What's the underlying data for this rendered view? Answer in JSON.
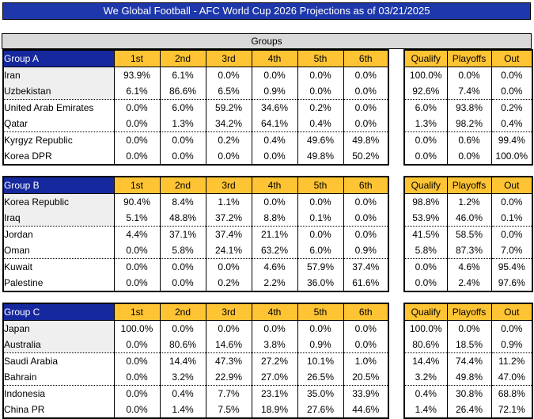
{
  "title": "We Global Football - AFC World Cup 2026 Projections as of 03/21/2025",
  "banner": "Groups",
  "position_headers": [
    "1st",
    "2nd",
    "3rd",
    "4th",
    "5th",
    "6th"
  ],
  "outcome_headers": [
    "Qualify",
    "Playoffs",
    "Out"
  ],
  "colors": {
    "title_bg": "#1E38AC",
    "group_header_bg": "#16289E",
    "column_header_bg": "#FFC433",
    "banner_bg": "#D9D9D9",
    "shaded_team_bg": "#EFEFEF"
  },
  "groups": [
    {
      "name": "Group A",
      "teams": [
        {
          "team": "Iran",
          "positions": [
            "93.9%",
            "6.1%",
            "0.0%",
            "0.0%",
            "0.0%",
            "0.0%"
          ],
          "outcomes": [
            "100.0%",
            "0.0%",
            "0.0%"
          ]
        },
        {
          "team": "Uzbekistan",
          "positions": [
            "6.1%",
            "86.6%",
            "6.5%",
            "0.9%",
            "0.0%",
            "0.0%"
          ],
          "outcomes": [
            "92.6%",
            "7.4%",
            "0.0%"
          ]
        },
        {
          "team": "United Arab Emirates",
          "positions": [
            "0.0%",
            "6.0%",
            "59.2%",
            "34.6%",
            "0.2%",
            "0.0%"
          ],
          "outcomes": [
            "6.0%",
            "93.8%",
            "0.2%"
          ]
        },
        {
          "team": "Qatar",
          "positions": [
            "0.0%",
            "1.3%",
            "34.2%",
            "64.1%",
            "0.4%",
            "0.0%"
          ],
          "outcomes": [
            "1.3%",
            "98.2%",
            "0.4%"
          ]
        },
        {
          "team": "Kyrgyz Republic",
          "positions": [
            "0.0%",
            "0.0%",
            "0.2%",
            "0.4%",
            "49.6%",
            "49.8%"
          ],
          "outcomes": [
            "0.0%",
            "0.6%",
            "99.4%"
          ]
        },
        {
          "team": "Korea DPR",
          "positions": [
            "0.0%",
            "0.0%",
            "0.0%",
            "0.0%",
            "49.8%",
            "50.2%"
          ],
          "outcomes": [
            "0.0%",
            "0.0%",
            "100.0%"
          ]
        }
      ]
    },
    {
      "name": "Group B",
      "teams": [
        {
          "team": "Korea Republic",
          "positions": [
            "90.4%",
            "8.4%",
            "1.1%",
            "0.0%",
            "0.0%",
            "0.0%"
          ],
          "outcomes": [
            "98.8%",
            "1.2%",
            "0.0%"
          ]
        },
        {
          "team": "Iraq",
          "positions": [
            "5.1%",
            "48.8%",
            "37.2%",
            "8.8%",
            "0.1%",
            "0.0%"
          ],
          "outcomes": [
            "53.9%",
            "46.0%",
            "0.1%"
          ]
        },
        {
          "team": "Jordan",
          "positions": [
            "4.4%",
            "37.1%",
            "37.4%",
            "21.1%",
            "0.0%",
            "0.0%"
          ],
          "outcomes": [
            "41.5%",
            "58.5%",
            "0.0%"
          ]
        },
        {
          "team": "Oman",
          "positions": [
            "0.0%",
            "5.8%",
            "24.1%",
            "63.2%",
            "6.0%",
            "0.9%"
          ],
          "outcomes": [
            "5.8%",
            "87.3%",
            "7.0%"
          ]
        },
        {
          "team": "Kuwait",
          "positions": [
            "0.0%",
            "0.0%",
            "0.0%",
            "4.6%",
            "57.9%",
            "37.4%"
          ],
          "outcomes": [
            "0.0%",
            "4.6%",
            "95.4%"
          ]
        },
        {
          "team": "Palestine",
          "positions": [
            "0.0%",
            "0.0%",
            "0.2%",
            "2.2%",
            "36.0%",
            "61.6%"
          ],
          "outcomes": [
            "0.0%",
            "2.4%",
            "97.6%"
          ]
        }
      ]
    },
    {
      "name": "Group C",
      "teams": [
        {
          "team": "Japan",
          "positions": [
            "100.0%",
            "0.0%",
            "0.0%",
            "0.0%",
            "0.0%",
            "0.0%"
          ],
          "outcomes": [
            "100.0%",
            "0.0%",
            "0.0%"
          ]
        },
        {
          "team": "Australia",
          "positions": [
            "0.0%",
            "80.6%",
            "14.6%",
            "3.8%",
            "0.9%",
            "0.0%"
          ],
          "outcomes": [
            "80.6%",
            "18.5%",
            "0.9%"
          ]
        },
        {
          "team": "Saudi Arabia",
          "positions": [
            "0.0%",
            "14.4%",
            "47.3%",
            "27.2%",
            "10.1%",
            "1.0%"
          ],
          "outcomes": [
            "14.4%",
            "74.4%",
            "11.2%"
          ]
        },
        {
          "team": "Bahrain",
          "positions": [
            "0.0%",
            "3.2%",
            "22.9%",
            "27.0%",
            "26.5%",
            "20.5%"
          ],
          "outcomes": [
            "3.2%",
            "49.8%",
            "47.0%"
          ]
        },
        {
          "team": "Indonesia",
          "positions": [
            "0.0%",
            "0.4%",
            "7.7%",
            "23.1%",
            "35.0%",
            "33.9%"
          ],
          "outcomes": [
            "0.4%",
            "30.8%",
            "68.8%"
          ]
        },
        {
          "team": "China PR",
          "positions": [
            "0.0%",
            "1.4%",
            "7.5%",
            "18.9%",
            "27.6%",
            "44.6%"
          ],
          "outcomes": [
            "1.4%",
            "26.4%",
            "72.1%"
          ]
        }
      ]
    }
  ],
  "layout": {
    "section_tops": [
      62,
      222,
      382
    ]
  }
}
